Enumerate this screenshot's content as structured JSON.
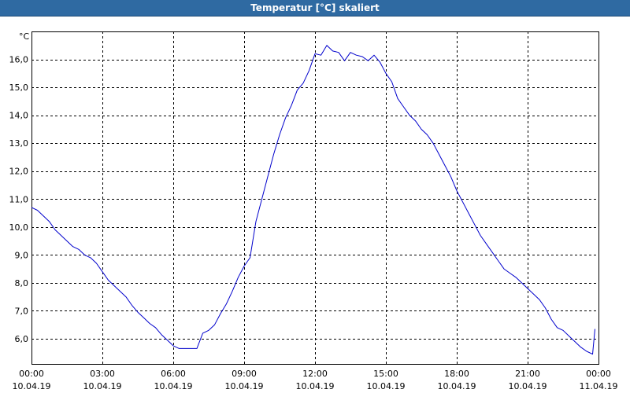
{
  "window": {
    "title": "Temperatur [°C] skaliert"
  },
  "chart_data": {
    "type": "line",
    "title": "Temperatur [°C] skaliert",
    "ylabel": "°C",
    "xlabel": "",
    "ylim": [
      5.1,
      17.0
    ],
    "xlim": [
      0,
      24
    ],
    "grid": true,
    "line_color": "#0000cc",
    "grid_color": "#000000",
    "y_ticks": [
      6.0,
      7.0,
      8.0,
      9.0,
      10.0,
      11.0,
      12.0,
      13.0,
      14.0,
      15.0,
      16.0
    ],
    "y_tick_labels": [
      "6,0",
      "7,0",
      "8,0",
      "9,0",
      "10,0",
      "11,0",
      "12,0",
      "13,0",
      "14,0",
      "15,0",
      "16,0"
    ],
    "x_ticks": [
      {
        "hour": 0,
        "time": "00:00",
        "date": "10.04.19"
      },
      {
        "hour": 3,
        "time": "03:00",
        "date": "10.04.19"
      },
      {
        "hour": 6,
        "time": "06:00",
        "date": "10.04.19"
      },
      {
        "hour": 9,
        "time": "09:00",
        "date": "10.04.19"
      },
      {
        "hour": 12,
        "time": "12:00",
        "date": "10.04.19"
      },
      {
        "hour": 15,
        "time": "15:00",
        "date": "10.04.19"
      },
      {
        "hour": 18,
        "time": "18:00",
        "date": "10.04.19"
      },
      {
        "hour": 21,
        "time": "21:00",
        "date": "10.04.19"
      },
      {
        "hour": 24,
        "time": "00:00",
        "date": "11.04.19"
      }
    ],
    "series": [
      {
        "x": [
          0,
          0.25,
          0.5,
          0.75,
          1.0,
          1.25,
          1.5,
          1.75,
          2.0,
          2.25,
          2.5,
          2.75,
          3.0,
          3.25,
          3.5,
          3.75,
          4.0,
          4.25,
          4.5,
          4.75,
          5.0,
          5.25,
          5.5,
          5.75,
          6.0,
          6.25,
          6.5,
          6.75,
          7.0,
          7.25,
          7.5,
          7.75,
          8.0,
          8.25,
          8.5,
          8.75,
          9.0,
          9.25,
          9.5,
          9.75,
          10.0,
          10.25,
          10.5,
          10.75,
          11.0,
          11.25,
          11.5,
          11.75,
          12.0,
          12.25,
          12.5,
          12.75,
          13.0,
          13.25,
          13.5,
          13.75,
          14.0,
          14.25,
          14.5,
          14.75,
          15.0,
          15.25,
          15.5,
          15.75,
          16.0,
          16.25,
          16.5,
          16.75,
          17.0,
          17.25,
          17.5,
          17.75,
          18.0,
          18.25,
          18.5,
          18.75,
          19.0,
          19.25,
          19.5,
          19.75,
          20.0,
          20.25,
          20.5,
          20.75,
          21.0,
          21.25,
          21.5,
          21.75,
          22.0,
          22.25,
          22.5,
          22.75,
          23.0,
          23.25,
          23.5,
          23.75,
          23.85
        ],
        "values": [
          10.7,
          10.6,
          10.4,
          10.2,
          9.9,
          9.7,
          9.5,
          9.3,
          9.2,
          9.0,
          8.9,
          8.7,
          8.4,
          8.1,
          7.9,
          7.7,
          7.5,
          7.2,
          6.95,
          6.75,
          6.55,
          6.4,
          6.15,
          5.95,
          5.75,
          5.65,
          5.65,
          5.65,
          5.65,
          6.2,
          6.3,
          6.5,
          6.9,
          7.25,
          7.7,
          8.2,
          8.6,
          8.9,
          10.2,
          11.0,
          11.8,
          12.6,
          13.3,
          13.9,
          14.35,
          14.9,
          15.15,
          15.6,
          16.2,
          16.15,
          16.5,
          16.3,
          16.25,
          15.95,
          16.25,
          16.15,
          16.1,
          15.95,
          16.15,
          15.9,
          15.5,
          15.2,
          14.6,
          14.3,
          14.0,
          13.8,
          13.5,
          13.3,
          13.0,
          12.6,
          12.2,
          11.8,
          11.3,
          10.9,
          10.5,
          10.1,
          9.7,
          9.4,
          9.1,
          8.8,
          8.5,
          8.35,
          8.2,
          8.0,
          7.8,
          7.6,
          7.4,
          7.1,
          6.7,
          6.4,
          6.3,
          6.1,
          5.9,
          5.7,
          5.55,
          5.45,
          6.35
        ]
      }
    ]
  }
}
